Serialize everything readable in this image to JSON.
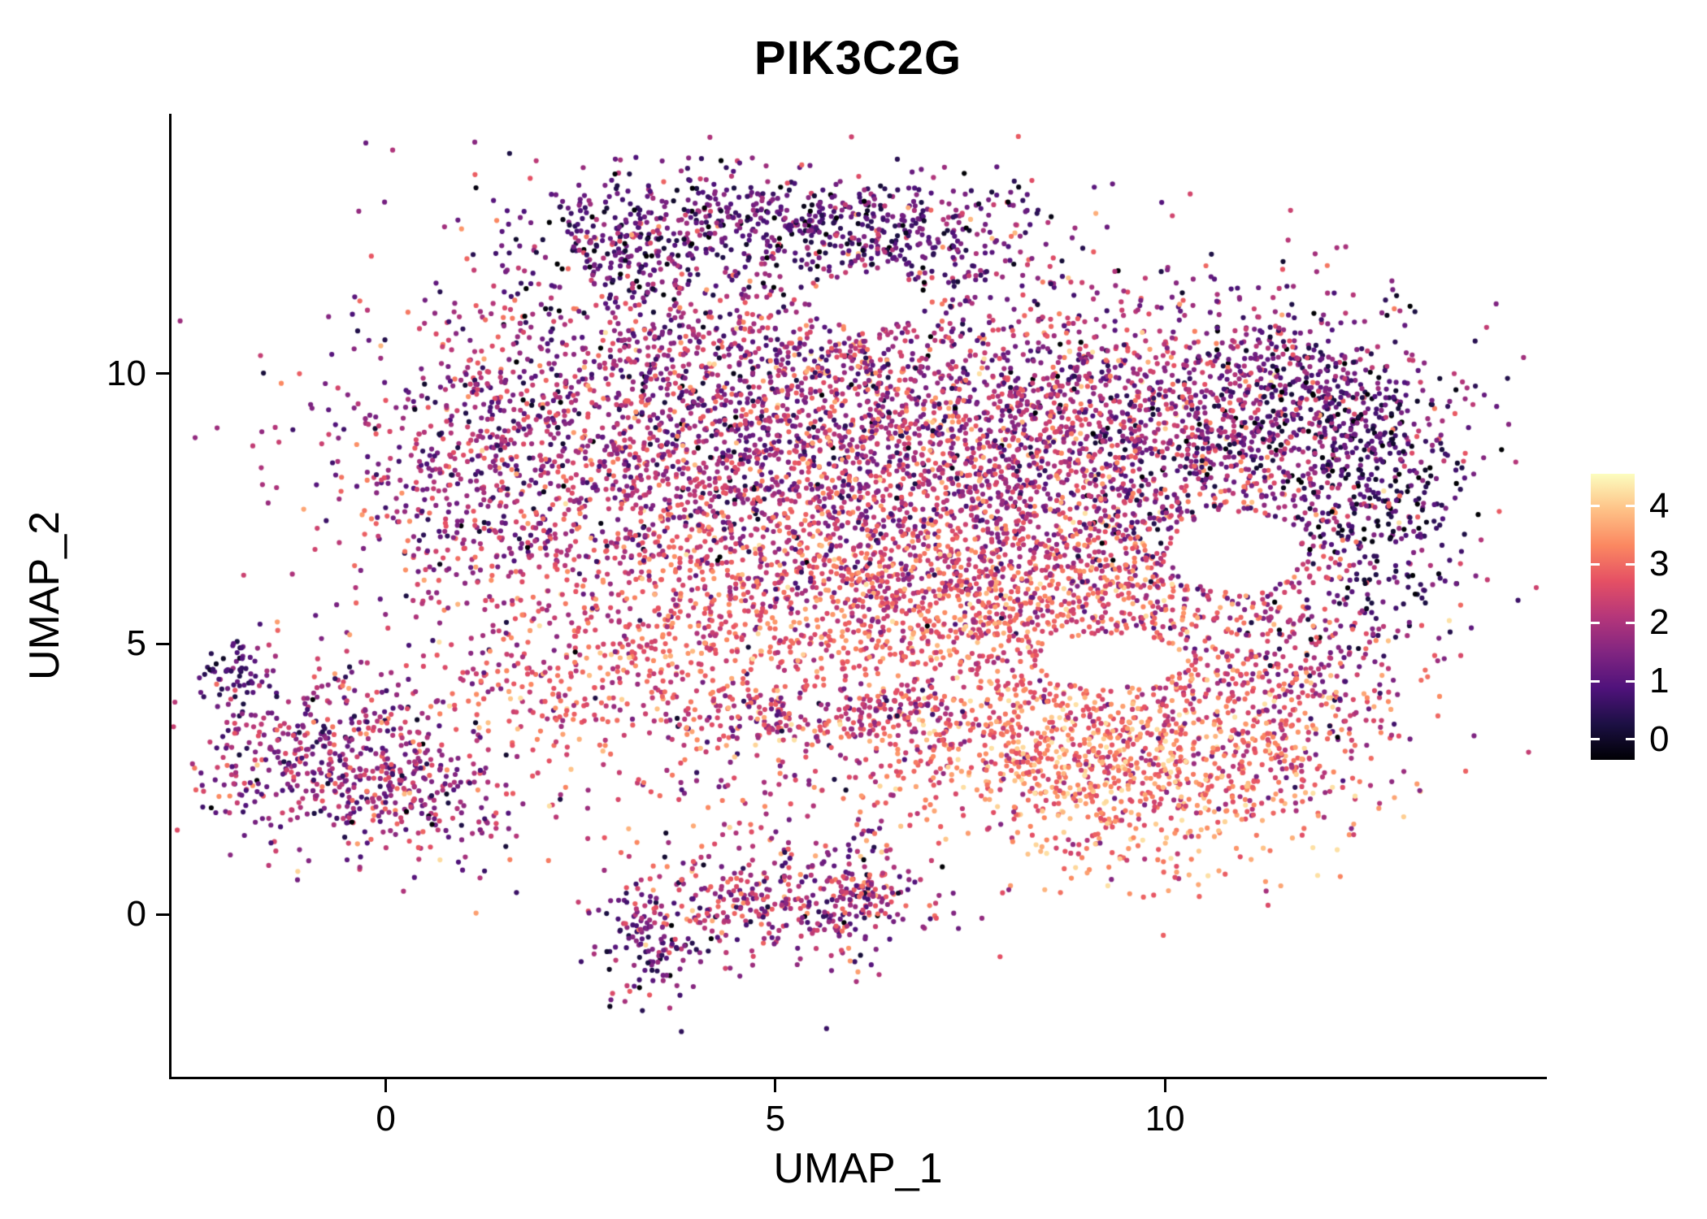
{
  "chart_data": {
    "type": "scatter",
    "title": "PIK3C2G",
    "xlabel": "UMAP_1",
    "ylabel": "UMAP_2",
    "xlim": [
      -2.75,
      14.87
    ],
    "ylim": [
      -3.0,
      14.8
    ],
    "x_ticks": [
      0,
      5,
      10
    ],
    "y_ticks": [
      0,
      5,
      10
    ],
    "grid": false,
    "background": "#ffffff",
    "point_radius_px": 3.1,
    "seed": 7,
    "color_scale": {
      "name": "magma",
      "domain": [
        0,
        4.42
      ],
      "stops": [
        "#000004",
        "#1c1044",
        "#4f127b",
        "#812581",
        "#b5367a",
        "#e55064",
        "#fb8861",
        "#fec287",
        "#fcfdbf"
      ]
    },
    "legend": {
      "ticks": [
        4,
        3,
        2,
        1,
        0
      ],
      "bar_domain": [
        -0.35,
        4.55
      ]
    },
    "clusters": [
      {
        "n": 1700,
        "cx": 3.6,
        "cy": 9.3,
        "sx": 2.0,
        "sy": 1.5,
        "e": 1.9,
        "esd": 0.8
      },
      {
        "n": 2100,
        "cx": 7.6,
        "cy": 8.6,
        "sx": 2.1,
        "sy": 1.6,
        "e": 2.2,
        "esd": 0.75
      },
      {
        "n": 900,
        "cx": 10.6,
        "cy": 8.8,
        "sx": 1.5,
        "sy": 1.4,
        "e": 1.6,
        "esd": 0.8
      },
      {
        "n": 900,
        "cx": 5.6,
        "cy": 6.3,
        "sx": 2.4,
        "sy": 0.9,
        "e": 2.7,
        "esd": 0.55
      },
      {
        "n": 550,
        "cx": 8.6,
        "cy": 5.8,
        "sx": 1.5,
        "sy": 0.8,
        "e": 2.9,
        "esd": 0.6
      },
      {
        "n": 420,
        "cx": 4.9,
        "cy": 12.9,
        "sx": 1.5,
        "sy": 0.45,
        "e": 1.2,
        "esd": 0.7
      },
      {
        "n": 160,
        "cx": 3.0,
        "cy": 12.2,
        "sx": 0.55,
        "sy": 0.55,
        "e": 1.1,
        "esd": 0.6
      },
      {
        "n": 220,
        "cx": 6.7,
        "cy": 12.4,
        "sx": 0.9,
        "sy": 0.5,
        "e": 1.3,
        "esd": 0.7
      },
      {
        "n": 330,
        "cx": 12.7,
        "cy": 7.8,
        "sx": 0.55,
        "sy": 1.3,
        "e": 0.9,
        "esd": 0.6
      },
      {
        "n": 260,
        "cx": 11.8,
        "cy": 9.6,
        "sx": 0.8,
        "sy": 0.7,
        "e": 1.2,
        "esd": 0.7
      },
      {
        "n": 850,
        "cx": 9.7,
        "cy": 2.7,
        "sx": 1.4,
        "sy": 0.95,
        "e": 3.2,
        "esd": 0.6
      },
      {
        "n": 300,
        "cx": 11.2,
        "cy": 3.8,
        "sx": 0.9,
        "sy": 0.9,
        "e": 2.4,
        "esd": 0.7
      },
      {
        "n": 280,
        "cx": 8.2,
        "cy": 3.4,
        "sx": 1.0,
        "sy": 0.8,
        "e": 2.9,
        "esd": 0.6
      },
      {
        "n": 520,
        "cx": -0.6,
        "cy": 2.9,
        "sx": 0.95,
        "sy": 0.8,
        "e": 1.8,
        "esd": 0.75
      },
      {
        "n": 120,
        "cx": 0.4,
        "cy": 2.1,
        "sx": 0.6,
        "sy": 0.5,
        "e": 2.0,
        "esd": 0.7
      },
      {
        "n": 55,
        "cx": -1.95,
        "cy": 4.4,
        "sx": 0.22,
        "sy": 0.4,
        "e": 1.0,
        "esd": 0.5
      },
      {
        "n": 330,
        "cx": 4.9,
        "cy": 0.3,
        "sx": 0.95,
        "sy": 0.5,
        "e": 2.1,
        "esd": 0.8
      },
      {
        "n": 120,
        "cx": 3.4,
        "cy": -0.6,
        "sx": 0.35,
        "sy": 0.55,
        "e": 1.5,
        "esd": 0.7
      },
      {
        "n": 110,
        "cx": 6.1,
        "cy": 0.4,
        "sx": 0.35,
        "sy": 0.65,
        "e": 1.9,
        "esd": 0.8
      },
      {
        "n": 240,
        "cx": 2.6,
        "cy": 4.3,
        "sx": 1.1,
        "sy": 0.7,
        "e": 2.7,
        "esd": 0.6
      },
      {
        "n": 170,
        "cx": 5.2,
        "cy": 3.6,
        "sx": 0.9,
        "sy": 0.35,
        "e": 2.4,
        "esd": 0.7
      },
      {
        "n": 90,
        "cx": 6.6,
        "cy": 3.7,
        "sx": 0.5,
        "sy": 0.3,
        "e": 2.2,
        "esd": 0.7
      },
      {
        "n": 200,
        "cx": 1.0,
        "cy": 7.5,
        "sx": 0.6,
        "sy": 1.2,
        "e": 1.9,
        "esd": 0.7
      },
      {
        "n": 150,
        "cx": 11.9,
        "cy": 5.3,
        "sx": 0.7,
        "sy": 0.8,
        "e": 1.8,
        "esd": 0.8
      },
      {
        "n": 300,
        "cx": 5.0,
        "cy": 4.9,
        "sx": 1.8,
        "sy": 0.6,
        "e": 3.0,
        "esd": 0.5
      },
      {
        "n": 150,
        "cx": 4.5,
        "cy": 2.3,
        "sx": 1.8,
        "sy": 0.9,
        "e": 2.4,
        "esd": 0.8
      },
      {
        "n": 400,
        "cx": 6.5,
        "cy": 8.5,
        "sx": 3.5,
        "sy": 2.6,
        "e": 2.0,
        "esd": 0.9
      }
    ],
    "holes": [
      {
        "cx": 10.9,
        "cy": 6.7,
        "rx": 0.85,
        "ry": 0.75
      },
      {
        "cx": 6.2,
        "cy": 11.35,
        "rx": 0.75,
        "ry": 0.5
      },
      {
        "cx": 9.3,
        "cy": 4.7,
        "rx": 0.95,
        "ry": 0.5
      }
    ]
  }
}
